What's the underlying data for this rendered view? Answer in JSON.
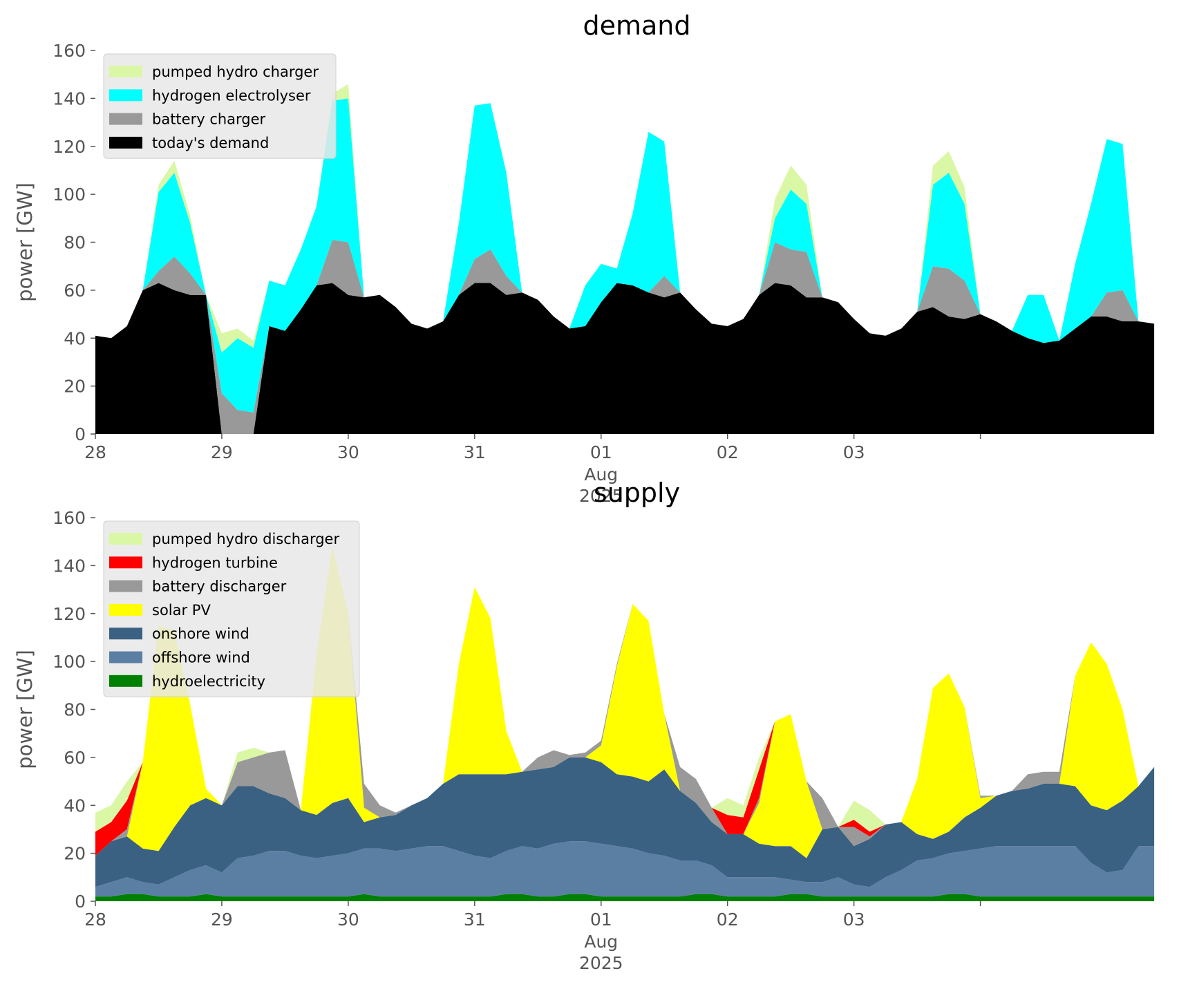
{
  "chart_data": [
    {
      "type": "area",
      "title": "demand",
      "ylabel": "power [GW]",
      "xlabel": "",
      "ylim": [
        0,
        160
      ],
      "yticks": [
        0,
        20,
        40,
        60,
        80,
        100,
        120,
        140,
        160
      ],
      "x_start": "2025-07-28T00:00",
      "x_step_hours": 3,
      "x_tick_labels": [
        "28",
        "29",
        "30",
        "31",
        "01",
        "02",
        "03"
      ],
      "x_tick_sublabels": {
        "01": [
          "Aug",
          "2025"
        ]
      },
      "stacked": true,
      "grid": false,
      "legend_position": "upper-left",
      "series": [
        {
          "name": "today's demand",
          "color": "#000000",
          "values": [
            41,
            40,
            45,
            60,
            63,
            60,
            58,
            58,
            0,
            0,
            0,
            45,
            43,
            52,
            62,
            63,
            58,
            57,
            58,
            53,
            46,
            44,
            47,
            58,
            63,
            63,
            58,
            59,
            56,
            49,
            44,
            45,
            55,
            63,
            62,
            59,
            57,
            59,
            52,
            46,
            45,
            48,
            58,
            63,
            62,
            57,
            57,
            55,
            48,
            42,
            41,
            44,
            51,
            53,
            49,
            48,
            50,
            47,
            43,
            40,
            38,
            39,
            44,
            49,
            49,
            47,
            47,
            46
          ]
        },
        {
          "name": "battery charger",
          "color": "#999999",
          "values": [
            0,
            0,
            0,
            0,
            5,
            14,
            9,
            0,
            17,
            10,
            9,
            0,
            0,
            0,
            0,
            18,
            22,
            0,
            0,
            0,
            0,
            0,
            0,
            0,
            10,
            14,
            8,
            0,
            0,
            0,
            0,
            0,
            0,
            0,
            0,
            0,
            9,
            0,
            0,
            0,
            0,
            0,
            0,
            17,
            15,
            19,
            0,
            0,
            0,
            0,
            0,
            0,
            0,
            17,
            20,
            16,
            0,
            0,
            0,
            0,
            0,
            0,
            0,
            0,
            10,
            13,
            0,
            0
          ]
        },
        {
          "name": "hydrogen electrolyser",
          "color": "#00ffff",
          "values": [
            0,
            0,
            0,
            0,
            33,
            35,
            21,
            0,
            17,
            30,
            27,
            19,
            19,
            25,
            33,
            58,
            60,
            0,
            0,
            0,
            0,
            0,
            0,
            30,
            64,
            61,
            43,
            0,
            0,
            0,
            0,
            17,
            16,
            6,
            30,
            67,
            56,
            0,
            0,
            0,
            0,
            0,
            0,
            10,
            25,
            20,
            0,
            0,
            0,
            0,
            0,
            0,
            0,
            34,
            40,
            32,
            0,
            0,
            0,
            18,
            20,
            0,
            27,
            47,
            64,
            61,
            0,
            0
          ]
        },
        {
          "name": "pumped hydro charger",
          "color": "#daf7a6",
          "values": [
            0,
            0,
            0,
            0,
            3,
            5,
            3,
            0,
            8,
            4,
            3,
            0,
            0,
            0,
            0,
            3,
            6,
            0,
            0,
            0,
            0,
            0,
            0,
            0,
            0,
            0,
            0,
            0,
            0,
            0,
            0,
            0,
            0,
            0,
            0,
            0,
            0,
            0,
            0,
            0,
            0,
            0,
            0,
            8,
            10,
            8,
            0,
            0,
            0,
            0,
            0,
            0,
            0,
            8,
            9,
            7,
            0,
            0,
            0,
            0,
            0,
            0,
            0,
            0,
            0,
            0,
            0,
            0
          ]
        }
      ]
    },
    {
      "type": "area",
      "title": "supply",
      "ylabel": "power [GW]",
      "xlabel": "",
      "ylim": [
        0,
        160
      ],
      "yticks": [
        0,
        20,
        40,
        60,
        80,
        100,
        120,
        140,
        160
      ],
      "x_start": "2025-07-28T00:00",
      "x_step_hours": 3,
      "x_tick_labels": [
        "28",
        "29",
        "30",
        "31",
        "01",
        "02",
        "03"
      ],
      "x_tick_sublabels": {
        "01": [
          "Aug",
          "2025"
        ]
      },
      "stacked": true,
      "grid": false,
      "legend_position": "upper-left",
      "series": [
        {
          "name": "hydroelectricity",
          "color": "#008000",
          "values": [
            2,
            2,
            3,
            3,
            2,
            2,
            2,
            3,
            2,
            2,
            2,
            2,
            2,
            2,
            2,
            2,
            2,
            3,
            2,
            2,
            2,
            2,
            2,
            2,
            2,
            2,
            3,
            3,
            2,
            2,
            3,
            3,
            2,
            2,
            2,
            2,
            2,
            2,
            3,
            3,
            2,
            2,
            2,
            2,
            3,
            3,
            2,
            2,
            2,
            2,
            2,
            2,
            2,
            2,
            3,
            3,
            2,
            2,
            2,
            2,
            2,
            2,
            2,
            2,
            2,
            2,
            2,
            2
          ]
        },
        {
          "name": "offshore wind",
          "color": "#5b7fa3",
          "values": [
            4,
            6,
            7,
            5,
            5,
            8,
            11,
            12,
            10,
            16,
            17,
            19,
            19,
            17,
            16,
            17,
            18,
            19,
            20,
            19,
            20,
            21,
            21,
            19,
            17,
            16,
            18,
            20,
            20,
            22,
            22,
            22,
            22,
            21,
            20,
            18,
            17,
            15,
            14,
            12,
            8,
            8,
            8,
            8,
            6,
            5,
            6,
            8,
            5,
            4,
            8,
            11,
            15,
            16,
            17,
            18,
            20,
            21,
            21,
            21,
            21,
            21,
            21,
            14,
            10,
            11,
            21,
            21
          ]
        },
        {
          "name": "onshore wind",
          "color": "#3b6182",
          "values": [
            13,
            17,
            17,
            14,
            14,
            21,
            27,
            28,
            28,
            30,
            29,
            24,
            22,
            19,
            18,
            22,
            23,
            11,
            13,
            15,
            18,
            20,
            26,
            32,
            34,
            35,
            32,
            31,
            33,
            32,
            35,
            35,
            34,
            30,
            30,
            30,
            36,
            29,
            24,
            18,
            18,
            18,
            14,
            13,
            14,
            10,
            22,
            21,
            16,
            20,
            22,
            20,
            11,
            8,
            9,
            14,
            17,
            21,
            23,
            24,
            26,
            26,
            25,
            24,
            26,
            29,
            25,
            33
          ]
        },
        {
          "name": "solar PV",
          "color": "#ffff00",
          "values": [
            0,
            0,
            0,
            36,
            94,
            82,
            42,
            4,
            0,
            0,
            0,
            0,
            0,
            0,
            67,
            107,
            77,
            6,
            0,
            0,
            0,
            0,
            0,
            46,
            78,
            65,
            18,
            0,
            0,
            0,
            0,
            0,
            7,
            45,
            72,
            67,
            23,
            0,
            0,
            0,
            0,
            0,
            17,
            52,
            55,
            32,
            0,
            0,
            0,
            0,
            0,
            0,
            23,
            63,
            66,
            46,
            4,
            0,
            0,
            0,
            0,
            0,
            46,
            68,
            61,
            38,
            0,
            0
          ]
        },
        {
          "name": "battery discharger",
          "color": "#999999",
          "values": [
            0,
            0,
            3,
            0,
            0,
            0,
            0,
            0,
            0,
            10,
            12,
            17,
            20,
            0,
            0,
            0,
            0,
            10,
            5,
            1,
            0,
            0,
            0,
            0,
            0,
            0,
            0,
            0,
            5,
            7,
            1,
            2,
            2,
            1,
            0,
            0,
            0,
            10,
            10,
            6,
            0,
            0,
            2,
            0,
            0,
            0,
            13,
            0,
            8,
            1,
            0,
            0,
            0,
            0,
            0,
            0,
            1,
            0,
            0,
            6,
            5,
            5,
            0,
            0,
            0,
            0,
            0,
            0
          ]
        },
        {
          "name": "hydrogen turbine",
          "color": "#ff0000",
          "values": [
            10,
            8,
            12,
            0,
            0,
            0,
            0,
            0,
            0,
            0,
            0,
            0,
            0,
            0,
            0,
            0,
            0,
            0,
            0,
            0,
            0,
            0,
            0,
            0,
            0,
            0,
            0,
            0,
            0,
            0,
            0,
            0,
            0,
            0,
            0,
            0,
            0,
            0,
            0,
            0,
            8,
            7,
            12,
            0,
            0,
            0,
            0,
            0,
            3,
            2,
            0,
            0,
            0,
            0,
            0,
            0,
            0,
            0,
            0,
            0,
            0,
            0,
            0,
            0,
            0,
            0,
            0,
            0
          ]
        },
        {
          "name": "pumped hydro discharger",
          "color": "#daf7a6",
          "values": [
            8,
            7,
            8,
            0,
            0,
            0,
            0,
            0,
            0,
            4,
            4,
            0,
            0,
            0,
            0,
            0,
            0,
            0,
            0,
            0,
            0,
            0,
            0,
            0,
            0,
            0,
            0,
            0,
            0,
            0,
            0,
            0,
            0,
            0,
            0,
            0,
            0,
            0,
            0,
            0,
            7,
            5,
            5,
            0,
            0,
            0,
            0,
            0,
            8,
            9,
            0,
            0,
            0,
            0,
            0,
            0,
            0,
            0,
            0,
            0,
            0,
            0,
            0,
            0,
            0,
            0,
            0,
            0
          ]
        }
      ]
    }
  ]
}
